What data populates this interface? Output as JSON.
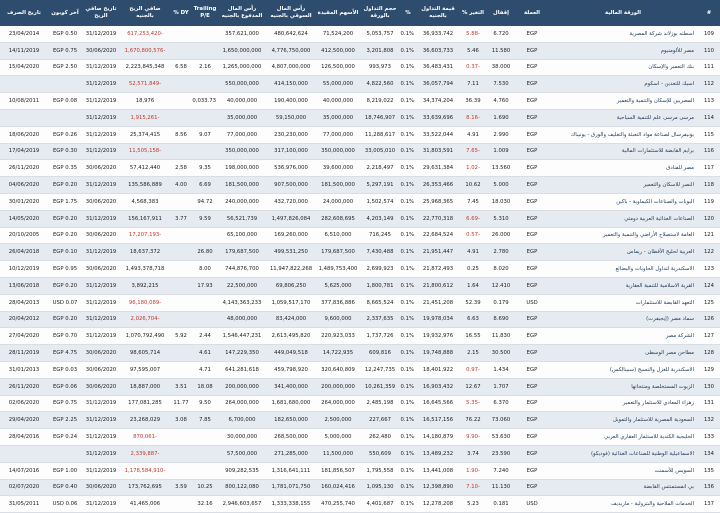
{
  "headers": {
    "num": "#",
    "name": "الورقة المالية",
    "currency": "العملة",
    "close": "إقفال",
    "change": "التغير %",
    "mktval": "قيمة التداول بالجنيه",
    "pct": "%",
    "volume": "حجم التداول بالورقة",
    "shares": "الأسهم المقيدة",
    "mktcap": "رأس المال السوقي بالجنيه",
    "paidcap": "رأس المال المدفوع بالجنيه",
    "pe": "Trailing P/E",
    "dy": "DY %",
    "netprofit": "صافي الربح بالجنيه",
    "profitdate": "تاريخ صافي الربح",
    "lastcoupon": "آخر كوبون",
    "coupondate": "تاريخ الصرف"
  },
  "rows": [
    {
      "num": "109",
      "name": "اسطنه بوزلاند شركة المصرية",
      "currency": "EGP",
      "close": "6.720",
      "change": "-5.88",
      "mktval": "36,933,742",
      "pct": "0.1%",
      "volume": "5,053,757",
      "shares": "71,524,200",
      "mktcap": "480,642,624",
      "paidcap": "357,621,000",
      "pe": "",
      "dy": "",
      "netprofit": "-617,253,420",
      "profitdate": "31/12/2019",
      "lastcoupon": "EGP 0.50",
      "coupondate": "23/04/2014"
    },
    {
      "num": "110",
      "name": "مصر للألومنيوم",
      "currency": "EGP",
      "close": "11.580",
      "change": "5.46",
      "mktval": "36,603,733",
      "pct": "0.1%",
      "volume": "3,201,808",
      "shares": "412,500,000",
      "mktcap": "4,776,750,000",
      "paidcap": "1,650,000,000",
      "pe": "",
      "dy": "",
      "netprofit": "-1,670,800,576",
      "profitdate": "30/06/2020",
      "lastcoupon": "EGP 0.75",
      "coupondate": "14/11/2019"
    },
    {
      "num": "111",
      "name": "بنك التعمير والإسكان",
      "currency": "EGP",
      "close": "38.000",
      "change": "-0.37",
      "mktval": "36,483,431",
      "pct": "0.1%",
      "volume": "993,973",
      "shares": "126,500,000",
      "mktcap": "4,807,000,000",
      "paidcap": "1,265,000,000",
      "pe": "2.16",
      "dy": "6.58",
      "netprofit": "2,223,845,348",
      "profitdate": "31/12/2019",
      "lastcoupon": "EGP 2.50",
      "coupondate": "15/04/2020"
    },
    {
      "num": "112",
      "name": "اسيك للتعدين - اسكوم",
      "currency": "EGP",
      "close": "7.530",
      "change": "7.11",
      "mktval": "36,057,794",
      "pct": "0.1%",
      "volume": "4,822,560",
      "shares": "55,000,000",
      "mktcap": "414,150,000",
      "paidcap": "550,000,000",
      "pe": "",
      "dy": "",
      "netprofit": "-52,571,849",
      "profitdate": "31/12/2019",
      "lastcoupon": "",
      "coupondate": ""
    },
    {
      "num": "113",
      "name": "المصريين للإسكان والتنمية والتعمير",
      "currency": "EGP",
      "close": "4.760",
      "change": "36.39",
      "mktval": "34,374,204",
      "pct": "0.1%",
      "volume": "8,219,022",
      "shares": "40,000,000",
      "mktcap": "190,400,000",
      "paidcap": "40,000,000",
      "pe": "10,033.73",
      "dy": "",
      "netprofit": "18,976",
      "profitdate": "31/12/2019",
      "lastcoupon": "EGP 0.08",
      "coupondate": "10/08/2011"
    },
    {
      "num": "114",
      "name": "مرسى مرسى علم للتنمية السياحية",
      "currency": "EGP",
      "close": "1.690",
      "change": "-8.16",
      "mktval": "33,639,696",
      "pct": "0.1%",
      "volume": "18,746,907",
      "shares": "35,000,000",
      "mktcap": "59,150,000",
      "paidcap": "35,000,000",
      "pe": "",
      "dy": "",
      "netprofit": "-1,915,261",
      "profitdate": "31/12/2019",
      "lastcoupon": "",
      "coupondate": ""
    },
    {
      "num": "115",
      "name": "يونيفرسال لصناعة مواد التعبئة والتغليف والورق - يونيباك",
      "currency": "EGP",
      "close": "2.990",
      "change": "4.91",
      "mktval": "33,522,044",
      "pct": "0.1%",
      "volume": "11,288,617",
      "shares": "77,000,000",
      "mktcap": "230,230,000",
      "paidcap": "77,000,000",
      "pe": "9.07",
      "dy": "8.56",
      "netprofit": "25,374,415",
      "profitdate": "31/12/2019",
      "lastcoupon": "EGP 0.26",
      "coupondate": "18/06/2020"
    },
    {
      "num": "116",
      "name": "برايم القابضة للاستثمارات المالية",
      "currency": "EGP",
      "close": "1.009",
      "change": "-7.65",
      "mktval": "31,803,591",
      "pct": "0.1%",
      "volume": "33,005,010",
      "shares": "350,000,000",
      "mktcap": "317,100,000",
      "paidcap": "350,000,000",
      "pe": "",
      "dy": "",
      "netprofit": "-11,505,158",
      "profitdate": "31/12/2019",
      "lastcoupon": "EGP 0.30",
      "coupondate": "17/04/2019"
    },
    {
      "num": "117",
      "name": "مصر للفنادق",
      "currency": "EGP",
      "close": "13.560",
      "change": "-1.02",
      "mktval": "29,631,384",
      "pct": "0.1%",
      "volume": "2,218,497",
      "shares": "39,600,000",
      "mktcap": "536,976,000",
      "paidcap": "198,000,000",
      "pe": "9.35",
      "dy": "2.58",
      "netprofit": "57,412,440",
      "profitdate": "30/06/2020",
      "lastcoupon": "EGP 0.35",
      "coupondate": "26/11/2020"
    },
    {
      "num": "118",
      "name": "النصر للاسكان والتعمير",
      "currency": "EGP",
      "close": "5.000",
      "change": "10.62",
      "mktval": "26,353,466",
      "pct": "0.1%",
      "volume": "5,297,191",
      "shares": "181,500,000",
      "mktcap": "907,500,000",
      "paidcap": "181,500,000",
      "pe": "6.69",
      "dy": "4.00",
      "netprofit": "135,586,889",
      "profitdate": "31/12/2019",
      "lastcoupon": "EGP 0.20",
      "coupondate": "04/06/2020"
    },
    {
      "num": "119",
      "name": "البويات والصناعات الكيماوية - باكين",
      "currency": "EGP",
      "close": "18.030",
      "change": "7.45",
      "mktval": "25,968,365",
      "pct": "0.1%",
      "volume": "1,502,574",
      "shares": "24,000,000",
      "mktcap": "432,720,000",
      "paidcap": "240,000,000",
      "pe": "94.72",
      "dy": "",
      "netprofit": "4,568,383",
      "profitdate": "30/06/2020",
      "lastcoupon": "EGP 1.75",
      "coupondate": "30/01/2020"
    },
    {
      "num": "120",
      "name": "الصناعات الغذائية العربية دومتي",
      "currency": "EGP",
      "close": "5.310",
      "change": "-6.69",
      "mktval": "22,770,318",
      "pct": "0.1%",
      "volume": "4,203,149",
      "shares": "282,608,695",
      "mktcap": "1,497,826,084",
      "paidcap": "56,521,739",
      "pe": "9.59",
      "dy": "3.77",
      "netprofit": "156,167,911",
      "profitdate": "31/12/2019",
      "lastcoupon": "EGP 0.20",
      "coupondate": "14/05/2020"
    },
    {
      "num": "121",
      "name": "العامة لاستصلاح الأراضي والتنمية والتعمير",
      "currency": "EGP",
      "close": "26.000",
      "change": "-0.57",
      "mktval": "22,684,524",
      "pct": "0.1%",
      "volume": "716,245",
      "shares": "6,510,000",
      "mktcap": "169,260,000",
      "paidcap": "65,100,000",
      "pe": "",
      "dy": "",
      "netprofit": "-17,207,193",
      "profitdate": "30/06/2020",
      "lastcoupon": "EGP 0.20",
      "coupondate": "20/10/2005"
    },
    {
      "num": "122",
      "name": "العربية لحليج الأقطان - ريماس",
      "currency": "EGP",
      "close": "2.780",
      "change": "4.91",
      "mktval": "21,951,447",
      "pct": "0.1%",
      "volume": "7,430,488",
      "shares": "179,687,500",
      "mktcap": "499,531,250",
      "paidcap": "179,687,500",
      "pe": "26.80",
      "dy": "",
      "netprofit": "18,637,372",
      "profitdate": "31/12/2019",
      "lastcoupon": "EGP 0.10",
      "coupondate": "26/04/2018"
    },
    {
      "num": "123",
      "name": "الاسكندرية لتداول الحاويات والبضائع",
      "currency": "EGP",
      "close": "8.020",
      "change": "0.25",
      "mktval": "21,872,493",
      "pct": "0.1%",
      "volume": "2,699,923",
      "shares": "1,489,753,400",
      "mktcap": "11,947,822,268",
      "paidcap": "744,876,700",
      "pe": "8.00",
      "dy": "",
      "netprofit": "1,493,378,718",
      "profitdate": "30/06/2020",
      "lastcoupon": "EGP 0.95",
      "coupondate": "10/12/2019"
    },
    {
      "num": "124",
      "name": "القرية الاسلامية للتنمية العقارية",
      "currency": "EGP",
      "close": "12.410",
      "change": "1.64",
      "mktval": "21,800,612",
      "pct": "0.1%",
      "volume": "1,800,781",
      "shares": "5,625,000",
      "mktcap": "69,806,250",
      "paidcap": "22,500,000",
      "pe": "17.93",
      "dy": "",
      "netprofit": "3,892,215",
      "profitdate": "31/12/2019",
      "lastcoupon": "EGP 0.20",
      "coupondate": "13/06/2018"
    },
    {
      "num": "125",
      "name": "التعهد القابضة للاستثمارات",
      "currency": "USD",
      "close": "0.179",
      "change": "52.39",
      "mktval": "21,451,208",
      "pct": "0.1%",
      "volume": "8,665,524",
      "shares": "377,836,886",
      "mktcap": "1,059,517,170",
      "paidcap": "4,143,363,233",
      "pe": "",
      "dy": "",
      "netprofit": "-96,180,089",
      "profitdate": "31/12/2019",
      "lastcoupon": "USD 0.07",
      "coupondate": "28/04/2013"
    },
    {
      "num": "126",
      "name": "سماد مصر (إيجيفرت)",
      "currency": "EGP",
      "close": "8.690",
      "change": "6.63",
      "mktval": "19,978,034",
      "pct": "0.1%",
      "volume": "2,337,635",
      "shares": "9,600,000",
      "mktcap": "83,424,000",
      "paidcap": "48,000,000",
      "pe": "",
      "dy": "",
      "netprofit": "-2,026,704",
      "profitdate": "31/12/2019",
      "lastcoupon": "EGP 0.20",
      "coupondate": "20/04/2012"
    },
    {
      "num": "127",
      "name": "الشركة مصر",
      "currency": "EGP",
      "close": "11.830",
      "change": "16.55",
      "mktval": "19,932,976",
      "pct": "0.1%",
      "volume": "1,737,726",
      "shares": "220,923,033",
      "mktcap": "2,613,495,820",
      "paidcap": "1,546,447,231",
      "pe": "2.44",
      "dy": "5.92",
      "netprofit": "1,070,792,490",
      "profitdate": "31/12/2019",
      "lastcoupon": "EGP 0.70",
      "coupondate": "27/04/2020"
    },
    {
      "num": "128",
      "name": "مطاحن مصر الوسطى",
      "currency": "EGP",
      "close": "30.500",
      "change": "2.15",
      "mktval": "19,748,888",
      "pct": "0.1%",
      "volume": "609,816",
      "shares": "14,722,935",
      "mktcap": "449,049,518",
      "paidcap": "147,229,350",
      "pe": "4.61",
      "dy": "",
      "netprofit": "98,605,714",
      "profitdate": "30/06/2020",
      "lastcoupon": "EGP 4.75",
      "coupondate": "28/11/2019"
    },
    {
      "num": "129",
      "name": "الاسكندرية للغزل والنسيج (سبينالكس)",
      "currency": "EGP",
      "close": "1.434",
      "change": "-0.97",
      "mktval": "18,401,922",
      "pct": "0.1%",
      "volume": "12,247,735",
      "shares": "320,640,809",
      "mktcap": "459,798,920",
      "paidcap": "641,281,618",
      "pe": "4.71",
      "dy": "",
      "netprofit": "97,595,007",
      "profitdate": "30/06/2020",
      "lastcoupon": "EGP 0.03",
      "coupondate": "31/01/2013"
    },
    {
      "num": "130",
      "name": "الزيوت المستخلصة ومنتجاتها",
      "currency": "EGP",
      "close": "1.707",
      "change": "12.67",
      "mktval": "16,903,432",
      "pct": "0.1%",
      "volume": "10,261,359",
      "shares": "200,000,000",
      "mktcap": "341,400,000",
      "paidcap": "200,000,000",
      "pe": "18.08",
      "dy": "3.51",
      "netprofit": "18,887,000",
      "profitdate": "30/06/2020",
      "lastcoupon": "EGP 0.06",
      "coupondate": "26/11/2020"
    },
    {
      "num": "131",
      "name": "زهراء المعادي للاستثمار والتعمير",
      "currency": "EGP",
      "close": "6.370",
      "change": "-5.35",
      "mktval": "16,645,566",
      "pct": "0.1%",
      "volume": "2,485,198",
      "shares": "264,000,000",
      "mktcap": "1,681,680,000",
      "paidcap": "264,000,000",
      "pe": "9.50",
      "dy": "11.77",
      "netprofit": "177,081,285",
      "profitdate": "31/12/2019",
      "lastcoupon": "EGP 0.75",
      "coupondate": "02/06/2020"
    },
    {
      "num": "132",
      "name": "السعودية المصرية للاستثمار والتمويل",
      "currency": "EGP",
      "close": "73.060",
      "change": "76.22",
      "mktval": "16,517,156",
      "pct": "0.1%",
      "volume": "227,667",
      "shares": "2,500,000",
      "mktcap": "182,650,000",
      "paidcap": "6,700,000",
      "pe": "7.85",
      "dy": "3.08",
      "netprofit": "23,268,029",
      "profitdate": "31/12/2019",
      "lastcoupon": "EGP 2.25",
      "coupondate": "29/04/2020"
    },
    {
      "num": "133",
      "name": "الخليجية الكندية للاستثمار العقاري العربي",
      "currency": "EGP",
      "close": "53.630",
      "change": "-9.90",
      "mktval": "14,180,879",
      "pct": "0.1%",
      "volume": "262,480",
      "shares": "5,000,000",
      "mktcap": "268,500,000",
      "paidcap": "30,000,000",
      "pe": "",
      "dy": "",
      "netprofit": "-870,061",
      "profitdate": "31/12/2019",
      "lastcoupon": "EGP 0.24",
      "coupondate": "28/04/2016"
    },
    {
      "num": "134",
      "name": "الاسماعيلية الوطنية للصناعات الغذائية (فوديكو)",
      "currency": "EGP",
      "close": "23.590",
      "change": "3.74",
      "mktval": "13,489,232",
      "pct": "0.1%",
      "volume": "550,609",
      "shares": "11,500,000",
      "mktcap": "271,285,000",
      "paidcap": "57,500,000",
      "pe": "",
      "dy": "",
      "netprofit": "-2,339,887",
      "profitdate": "31/12/2019",
      "lastcoupon": "",
      "coupondate": ""
    },
    {
      "num": "135",
      "name": "السويس للأسمنت",
      "currency": "EGP",
      "close": "7.240",
      "change": "-1.90",
      "mktval": "13,441,008",
      "pct": "0.1%",
      "volume": "1,795,558",
      "shares": "181,856,507",
      "mktcap": "1,316,641,111",
      "paidcap": "909,282,535",
      "pe": "",
      "dy": "",
      "netprofit": "-1,178,584,910",
      "profitdate": "31/12/2019",
      "lastcoupon": "EGP 1.00",
      "coupondate": "14/07/2016"
    },
    {
      "num": "136",
      "name": "بي انفستمنتس القابضة",
      "currency": "EGP",
      "close": "11.130",
      "change": "-7.10",
      "mktval": "12,398,890",
      "pct": "0.1%",
      "volume": "1,095,130",
      "shares": "160,024,416",
      "mktcap": "1,781,071,750",
      "paidcap": "800,122,080",
      "pe": "10.25",
      "dy": "3.59",
      "netprofit": "173,762,695",
      "profitdate": "30/06/2020",
      "lastcoupon": "EGP 0.40",
      "coupondate": "02/07/2020"
    },
    {
      "num": "137",
      "name": "الخدمات الملاحية والبترولية - ماريديف",
      "currency": "USD",
      "close": "0.181",
      "change": "5.23",
      "mktval": "12,278,208",
      "pct": "0.1%",
      "volume": "4,401,687",
      "shares": "470,255,740",
      "mktcap": "1,333,338,155",
      "paidcap": "2,946,603,657",
      "pe": "32.16",
      "dy": "",
      "netprofit": "41,465,006",
      "profitdate": "31/12/2019",
      "lastcoupon": "USD 0.06",
      "coupondate": "31/05/2011"
    }
  ]
}
